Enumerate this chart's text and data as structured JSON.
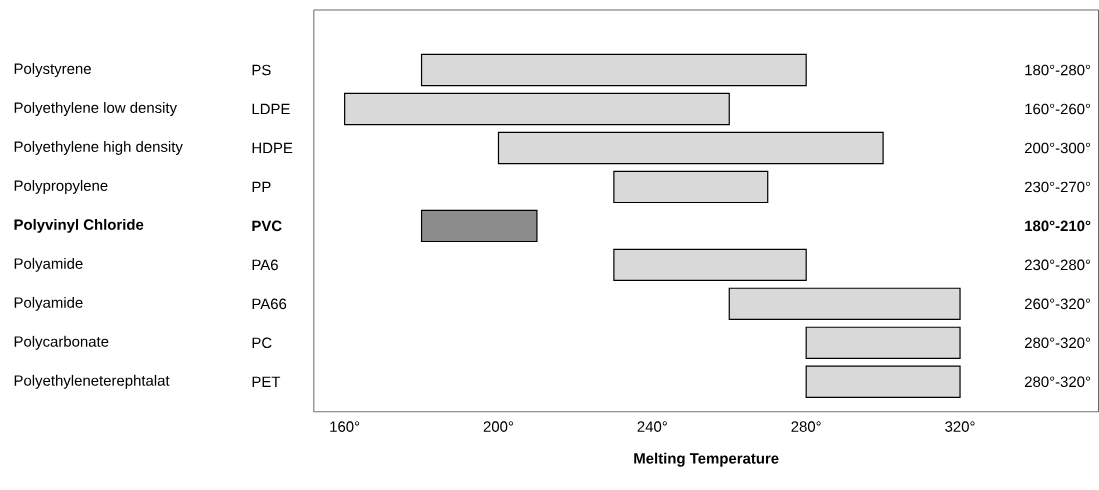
{
  "chart_data": {
    "type": "bar",
    "orientation": "horizontal",
    "xlabel": "Melting Temperature",
    "categories": [
      "Polystyrene",
      "Polyethylene low density",
      "Polyethylene high density",
      "Polypropylene",
      "**Polyvinyl Chloride**",
      "Polyamide",
      "Polyamide",
      "Polycarbonate",
      "Polyethyleneterephtalat"
    ],
    "y2_categories": [
      "PS",
      "LDPE",
      "HDPE",
      "PP",
      "**PVC**",
      "PA6",
      "PA66",
      "PC",
      "PET"
    ],
    "base": [
      180,
      160,
      200,
      230,
      180,
      230,
      260,
      280,
      280
    ],
    "values": [
      100,
      100,
      100,
      40,
      30,
      50,
      60,
      40,
      40
    ],
    "colors": [
      "#d9d9d9",
      "#d9d9d9",
      "#d9d9d9",
      "#d9d9d9",
      "#8c8c8c",
      "#d9d9d9",
      "#d9d9d9",
      "#d9d9d9",
      "#d9d9d9"
    ],
    "annotations": [
      "180°-280°",
      "160°-260°",
      "200°-300°",
      "230°-270°",
      "**180°-210°**",
      "230°-280°",
      "260°-320°",
      "280°-320°",
      "280°-320°"
    ],
    "xlim": [
      152,
      356
    ],
    "xticks": [
      {
        "value": 160,
        "label": "160°"
      },
      {
        "value": 200,
        "label": "200°"
      },
      {
        "value": 240,
        "label": "240°"
      },
      {
        "value": 280,
        "label": "280°"
      },
      {
        "value": 320,
        "label": "320°"
      }
    ]
  }
}
